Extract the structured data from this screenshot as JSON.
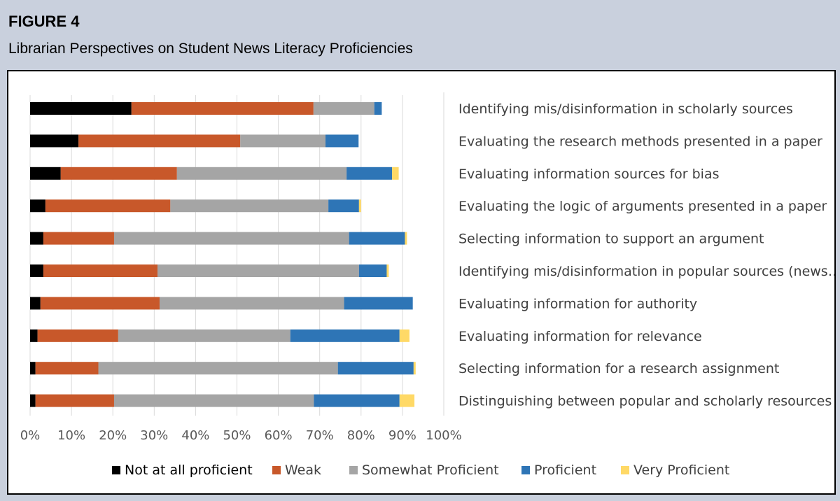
{
  "figure_label": "FIGURE 4",
  "figure_title": "Librarian Perspectives on Student News Literacy Proficiencies",
  "colors": {
    "Not at all proficient": "#000000",
    "Weak": "#c8582a",
    "Somewhat Proficient": "#a5a5a5",
    "Proficient": "#2e75b6",
    "Very Proficient": "#ffd966"
  },
  "chart_data": {
    "type": "bar",
    "orientation": "horizontal",
    "stacked": true,
    "title": "",
    "xlabel": "",
    "ylabel": "",
    "xlim": [
      0,
      100
    ],
    "x_ticks": [
      "0%",
      "10%",
      "20%",
      "30%",
      "40%",
      "50%",
      "60%",
      "70%",
      "80%",
      "90%",
      "100%"
    ],
    "legend_position": "bottom",
    "categories": [
      "Identifying mis/disinformation in scholarly sources",
      "Evaluating the research methods presented in a paper",
      "Evaluating information sources for bias",
      "Evaluating the logic of arguments presented in a paper",
      "Selecting  information to support an argument",
      "Identifying mis/disinformation in popular sources (news…",
      "Evaluating information for authority",
      "Evaluating information for relevance",
      "Selecting information for a research assignment",
      "Distinguishing between popular and scholarly resources"
    ],
    "series": [
      {
        "name": "Not at all proficient",
        "values": [
          24.5,
          11.7,
          7.4,
          3.7,
          3.2,
          3.2,
          2.5,
          1.8,
          1.3,
          1.3
        ]
      },
      {
        "name": "Weak",
        "values": [
          44.0,
          39.1,
          28.1,
          30.2,
          17.1,
          27.6,
          28.8,
          19.5,
          15.2,
          19.0
        ]
      },
      {
        "name": "Somewhat Proficient",
        "values": [
          14.7,
          20.6,
          41.0,
          38.2,
          56.8,
          48.7,
          44.6,
          41.6,
          57.9,
          48.3
        ]
      },
      {
        "name": "Proficient",
        "values": [
          1.8,
          8.0,
          11.0,
          7.4,
          13.5,
          6.7,
          16.6,
          26.4,
          18.3,
          20.7
        ]
      },
      {
        "name": "Very Proficient",
        "values": [
          0.0,
          0.0,
          1.6,
          0.5,
          0.5,
          0.5,
          0.0,
          2.4,
          0.5,
          3.6
        ]
      }
    ]
  }
}
